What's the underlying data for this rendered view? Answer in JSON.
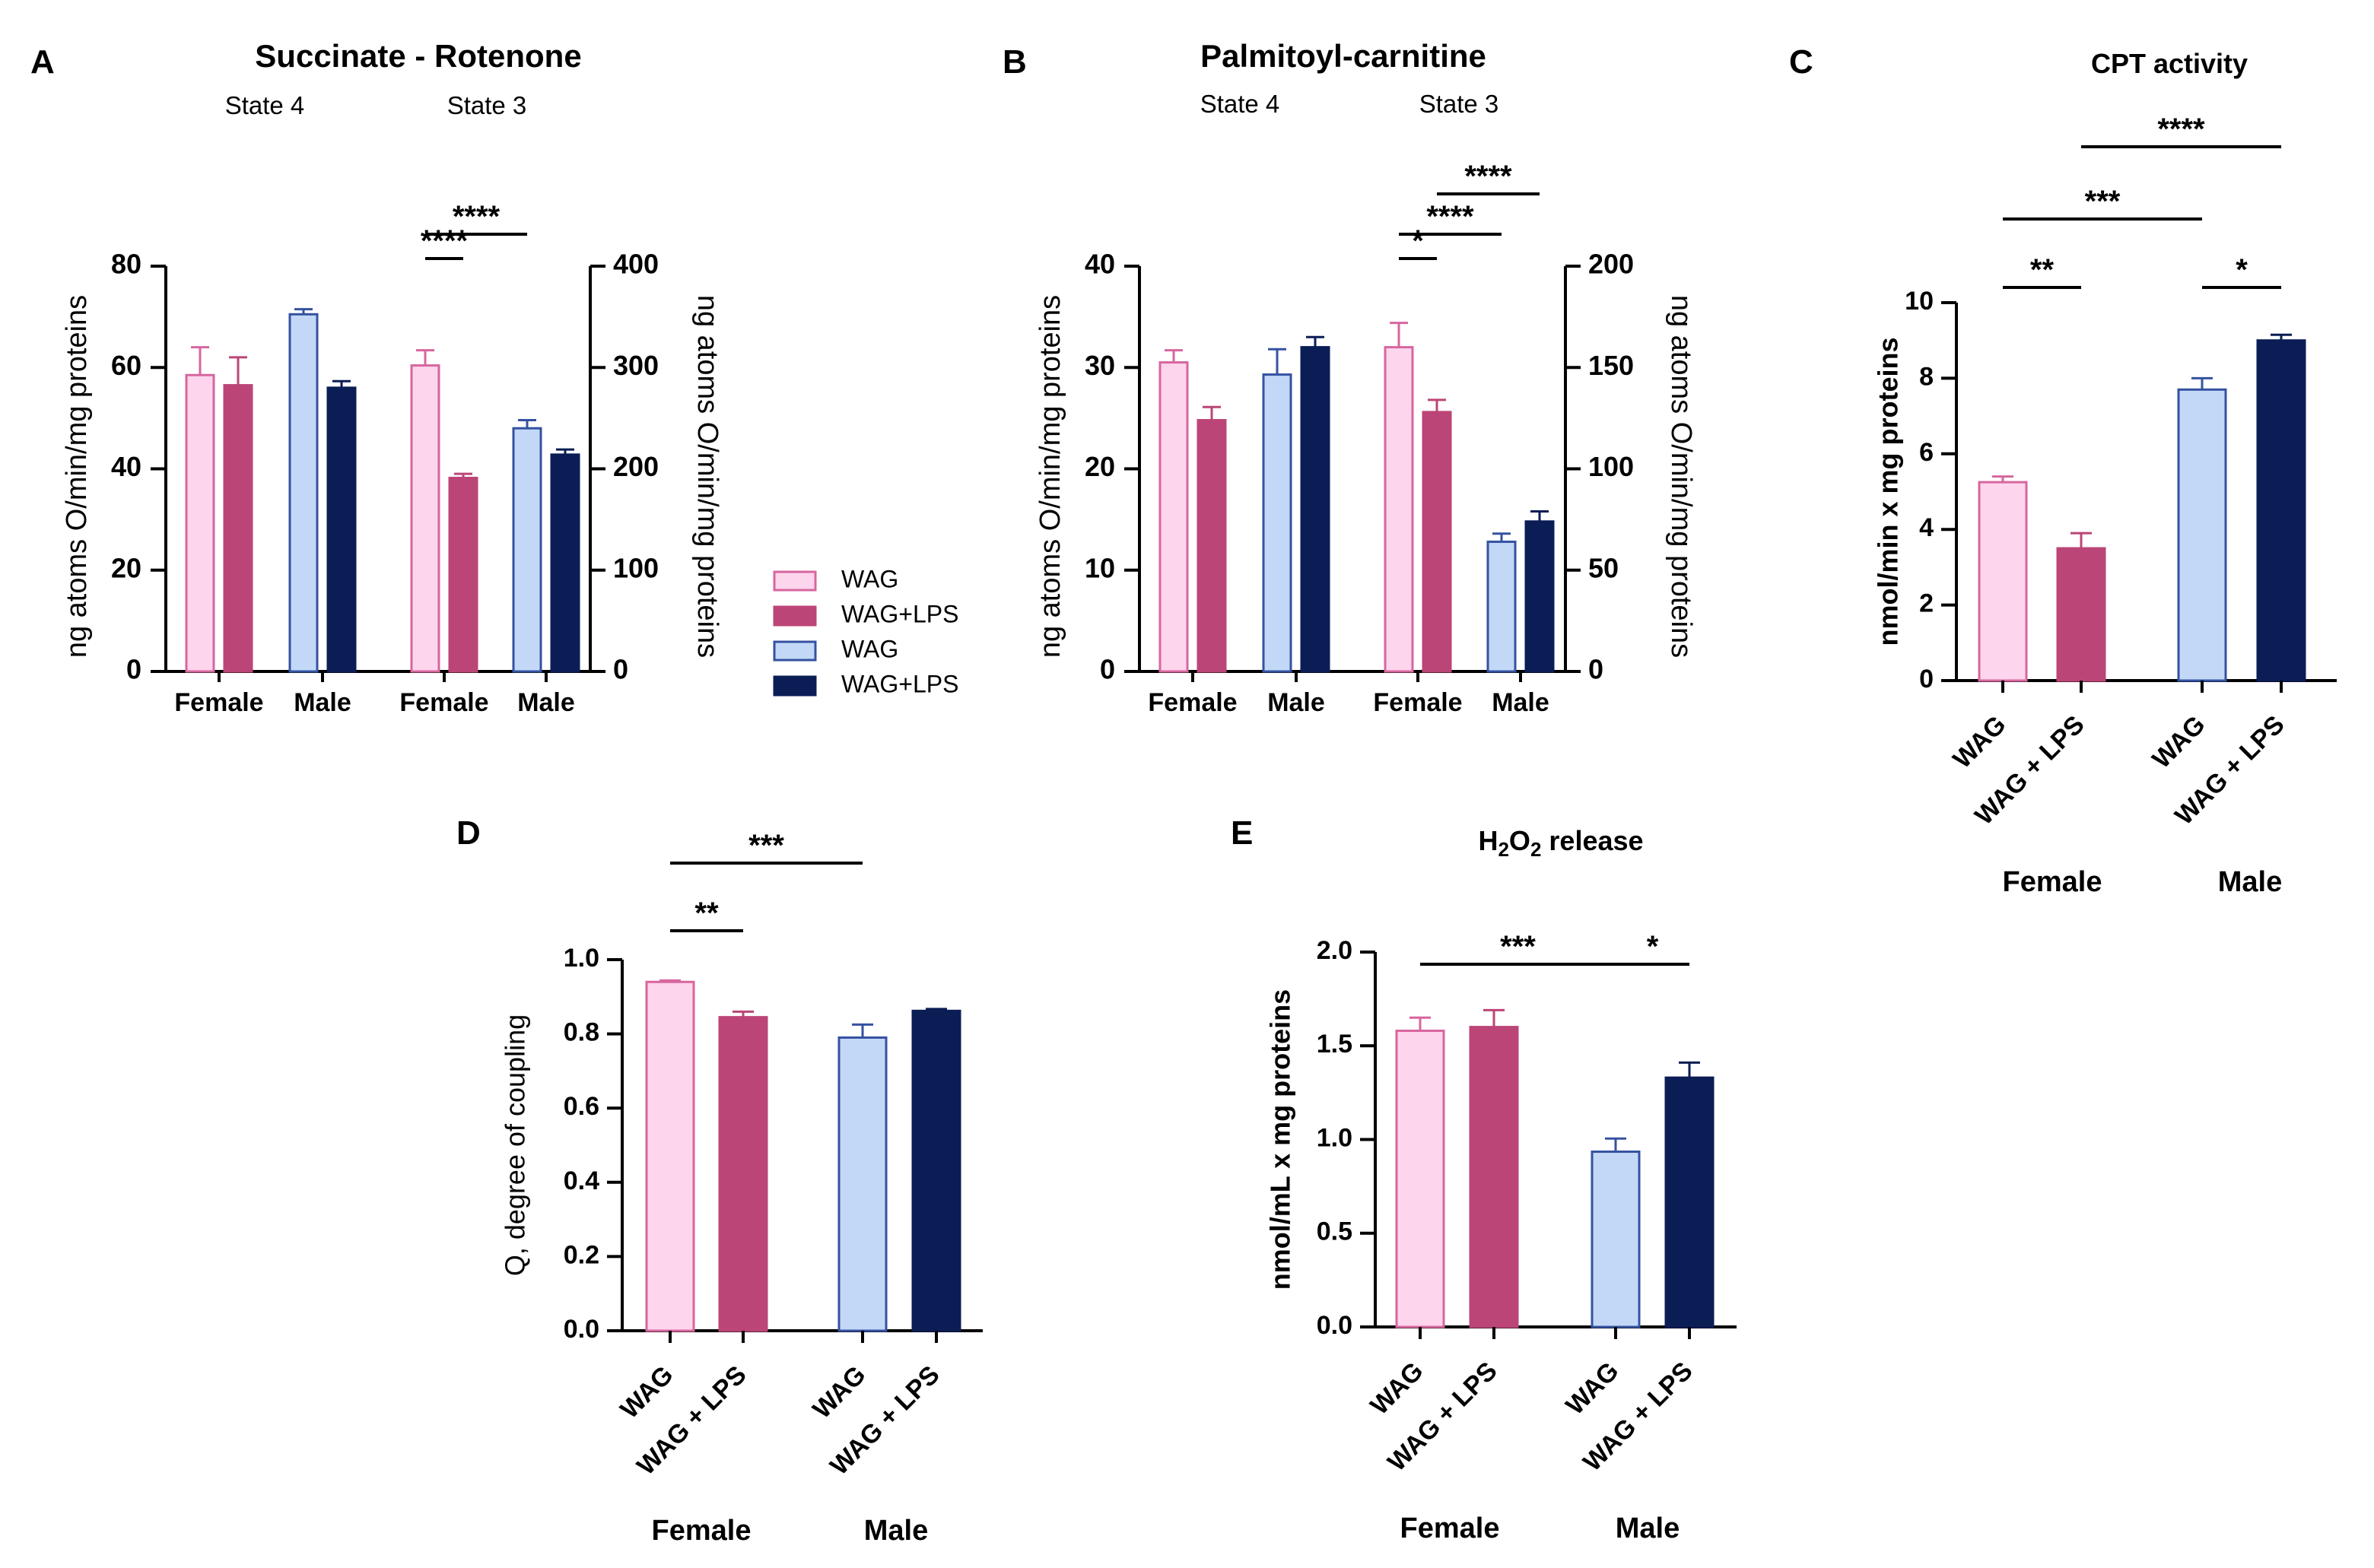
{
  "colors": {
    "wag_female": "#FDD5EC",
    "wag_female_stroke": "#D7669F",
    "wag_lps_female": "#BC4577",
    "wag_male": "#C3D8F7",
    "wag_male_stroke": "#3552A1",
    "wag_lps_male": "#0B1D55"
  },
  "legend": {
    "items": [
      {
        "label": "WAG",
        "color": "#FDD5EC",
        "stroke": "#D7669F"
      },
      {
        "label": "WAG+LPS",
        "color": "#BC4577",
        "stroke": "#BC4577"
      },
      {
        "label": "WAG",
        "color": "#C3D8F7",
        "stroke": "#3552A1"
      },
      {
        "label": "WAG+LPS",
        "color": "#0B1D55",
        "stroke": "#0B1D55"
      }
    ]
  },
  "chart_data": [
    {
      "panel": "A",
      "type": "bar",
      "title": "Succinate - Rotenone",
      "ylabel_left": "ng atoms O/min/mg proteins",
      "ylabel_right": "ng atoms O/min/mg proteins",
      "ylim_left": [
        0,
        80
      ],
      "ylim_right": [
        0,
        400
      ],
      "yticks_left": [
        "0",
        "20",
        "40",
        "60",
        "80"
      ],
      "yticks_right": [
        "0",
        "100",
        "200",
        "300",
        "400"
      ],
      "state_labels": [
        "State 4",
        "State 3"
      ],
      "groups": [
        {
          "label": "Female",
          "bars": [
            {
              "value": 58.5,
              "err": 5.5
            },
            {
              "value": 56.5,
              "err": 5.5
            }
          ]
        },
        {
          "label": "Male",
          "bars": [
            {
              "value": 70.5,
              "err": 1.0
            },
            {
              "value": 56,
              "err": 1.3
            }
          ]
        },
        {
          "label": "Female",
          "axis": "right",
          "bars": [
            {
              "value": 302,
              "err": 15
            },
            {
              "value": 191,
              "err": 4
            }
          ]
        },
        {
          "label": "Male",
          "axis": "right",
          "bars": [
            {
              "value": 240,
              "err": 8
            },
            {
              "value": 214,
              "err": 5
            }
          ]
        }
      ],
      "significance": [
        {
          "label": "****",
          "from": [
            2,
            0
          ],
          "to": [
            2,
            1
          ],
          "level": 1
        },
        {
          "label": "****",
          "from": [
            2,
            0
          ],
          "to": [
            3,
            0
          ],
          "level": 2
        }
      ]
    },
    {
      "panel": "B",
      "type": "bar",
      "title": "Palmitoyl-carnitine",
      "ylabel_left": "ng atoms O/min/mg proteins",
      "ylabel_right": "ng atoms O/min/mg proteins",
      "ylim_left": [
        0,
        40
      ],
      "ylim_right": [
        0,
        200
      ],
      "yticks_left": [
        "0",
        "10",
        "20",
        "30",
        "40"
      ],
      "yticks_right": [
        "0",
        "50",
        "100",
        "150",
        "200"
      ],
      "state_labels": [
        "State 4",
        "State 3"
      ],
      "groups": [
        {
          "label": "Female",
          "bars": [
            {
              "value": 30.5,
              "err": 1.2
            },
            {
              "value": 24.8,
              "err": 1.3
            }
          ]
        },
        {
          "label": "Male",
          "bars": [
            {
              "value": 29.3,
              "err": 2.5
            },
            {
              "value": 32,
              "err": 1.0
            }
          ]
        },
        {
          "label": "Female",
          "axis": "right",
          "bars": [
            {
              "value": 160,
              "err": 12
            },
            {
              "value": 128,
              "err": 6
            }
          ]
        },
        {
          "label": "Male",
          "axis": "right",
          "bars": [
            {
              "value": 64,
              "err": 4
            },
            {
              "value": 74,
              "err": 5
            }
          ]
        }
      ],
      "significance": [
        {
          "label": "*",
          "from": [
            2,
            0
          ],
          "to": [
            2,
            1
          ],
          "level": 1
        },
        {
          "label": "****",
          "from": [
            2,
            0
          ],
          "to": [
            3,
            0
          ],
          "level": 2
        },
        {
          "label": "****",
          "from": [
            2,
            1
          ],
          "to": [
            3,
            1
          ],
          "level": 3
        }
      ]
    },
    {
      "panel": "C",
      "type": "bar",
      "title": "CPT activity",
      "ylabel": "nmol/min x mg proteins",
      "ylim": [
        0,
        10
      ],
      "yticks": [
        "0",
        "2",
        "4",
        "6",
        "8",
        "10"
      ],
      "categories": [
        "WAG",
        "WAG + LPS",
        "WAG",
        "WAG + LPS"
      ],
      "group_labels": [
        "Female",
        "Male"
      ],
      "values": [
        5.25,
        3.5,
        7.7,
        9.0
      ],
      "errors": [
        0.15,
        0.4,
        0.3,
        0.15
      ],
      "significance": [
        {
          "label": "**",
          "from": 0,
          "to": 1,
          "level": 1
        },
        {
          "label": "*",
          "from": 2,
          "to": 3,
          "level": 1
        },
        {
          "label": "***",
          "from": 0,
          "to": 2,
          "level": 2
        },
        {
          "label": "****",
          "from": 1,
          "to": 3,
          "level": 3
        }
      ]
    },
    {
      "panel": "D",
      "type": "bar",
      "title": "",
      "ylabel": "Q, degree of coupling",
      "ylim": [
        0,
        1.0
      ],
      "yticks": [
        "0.0",
        "0.2",
        "0.4",
        "0.6",
        "0.8",
        "1.0"
      ],
      "categories": [
        "WAG",
        "WAG + LPS",
        "WAG",
        "WAG + LPS"
      ],
      "group_labels": [
        "Female",
        "Male"
      ],
      "values": [
        0.94,
        0.845,
        0.79,
        0.862
      ],
      "errors": [
        0.004,
        0.015,
        0.035,
        0.005
      ],
      "significance": [
        {
          "label": "**",
          "from": 0,
          "to": 1,
          "level": 1
        },
        {
          "label": "***",
          "from": 0,
          "to": 2,
          "level": 2
        }
      ]
    },
    {
      "panel": "E",
      "type": "bar",
      "title": "H2O2 release",
      "ylabel": "nmol/mL x mg proteins",
      "ylim": [
        0,
        2.0
      ],
      "yticks": [
        "0.0",
        "0.5",
        "1.0",
        "1.5",
        "2.0"
      ],
      "categories": [
        "WAG",
        "WAG + LPS",
        "WAG",
        "WAG + LPS"
      ],
      "group_labels": [
        "Female",
        "Male"
      ],
      "values": [
        1.58,
        1.6,
        0.935,
        1.33
      ],
      "errors": [
        0.07,
        0.09,
        0.07,
        0.08
      ],
      "significance": [
        {
          "label": "***",
          "from": 0,
          "to": 2,
          "level": 1
        },
        {
          "label": "*",
          "from": 2,
          "to": 3,
          "level": 1
        }
      ]
    }
  ],
  "panel_letters": [
    "A",
    "B",
    "C",
    "D",
    "E"
  ]
}
